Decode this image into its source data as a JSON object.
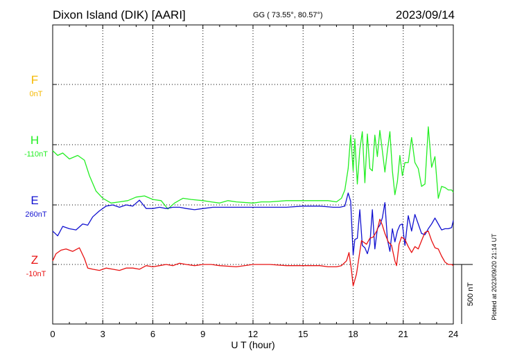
{
  "header": {
    "station": "Dixon Island (DIK)  [AARI]",
    "coords": "GG ( 73.55°,  80.57°)",
    "date": "2023/09/14"
  },
  "side_note": "Plotted at 2023/09/20 21:14 UT",
  "scale_label": "500 nT",
  "colors": {
    "F": "#f5b800",
    "H": "#22ee22",
    "E": "#1010d0",
    "Z": "#e81010",
    "axis": "#000000"
  },
  "chart_data": {
    "type": "line",
    "xlabel": "U T (hour)",
    "xlim": [
      0,
      24
    ],
    "x_ticks": [
      "0",
      "3",
      "6",
      "9",
      "12",
      "15",
      "18",
      "21",
      "24"
    ],
    "grid": true,
    "y_units": "nT",
    "panel_scale_nT": 500,
    "channels": [
      {
        "name": "F",
        "baseline": "0nT",
        "color": "#f5b800",
        "x": [],
        "values": []
      },
      {
        "name": "H",
        "baseline": "-110nT",
        "color": "#22ee22",
        "x": [
          0,
          0.3,
          0.6,
          1.0,
          1.5,
          1.9,
          2.2,
          2.6,
          3.0,
          3.5,
          4.0,
          4.5,
          5.0,
          5.5,
          6.0,
          6.5,
          6.9,
          7.3,
          7.8,
          8.3,
          9.0,
          9.5,
          10.0,
          10.5,
          11.0,
          12.0,
          12.5,
          13.0,
          14.0,
          15.0,
          16.0,
          16.5,
          17.0,
          17.3,
          17.5,
          17.7,
          17.85,
          18.0,
          18.1,
          18.25,
          18.4,
          18.55,
          18.7,
          18.85,
          19.0,
          19.15,
          19.3,
          19.45,
          19.6,
          19.75,
          19.9,
          20.05,
          20.2,
          20.35,
          20.5,
          20.65,
          20.8,
          20.95,
          21.1,
          21.3,
          21.5,
          21.7,
          21.9,
          22.1,
          22.3,
          22.5,
          22.7,
          22.9,
          23.1,
          23.3,
          23.5,
          23.7,
          23.9,
          24.0
        ],
        "values": [
          -50,
          -90,
          -70,
          -120,
          -90,
          -130,
          -260,
          -390,
          -450,
          -490,
          -480,
          -470,
          -440,
          -430,
          -460,
          -470,
          -540,
          -490,
          -450,
          -460,
          -470,
          -480,
          -490,
          -470,
          -480,
          -490,
          -480,
          -480,
          -470,
          -470,
          -470,
          -470,
          -480,
          -450,
          -380,
          -200,
          80,
          -220,
          50,
          -330,
          -40,
          110,
          -320,
          90,
          -200,
          -220,
          80,
          -100,
          120,
          -50,
          -230,
          -50,
          110,
          -220,
          -420,
          -310,
          -90,
          -260,
          -150,
          -150,
          60,
          -150,
          -200,
          -350,
          -330,
          150,
          -190,
          -100,
          -450,
          -350,
          -360,
          -380,
          -380,
          -400
        ]
      },
      {
        "name": "E",
        "baseline": "260nT",
        "color": "#1010d0",
        "x": [
          0,
          0.3,
          0.6,
          1.0,
          1.4,
          1.8,
          2.1,
          2.4,
          2.8,
          3.2,
          3.6,
          4.0,
          4.4,
          4.8,
          5.2,
          5.6,
          6.0,
          6.4,
          6.8,
          7.2,
          7.6,
          8.0,
          8.5,
          9.0,
          9.6,
          10.2,
          11.0,
          12.0,
          13.0,
          14.0,
          15.0,
          16.0,
          16.8,
          17.2,
          17.5,
          17.7,
          17.85,
          18.0,
          18.1,
          18.25,
          18.4,
          18.55,
          18.7,
          18.85,
          19.0,
          19.15,
          19.3,
          19.45,
          19.6,
          19.75,
          19.9,
          20.05,
          20.2,
          20.35,
          20.5,
          20.65,
          20.8,
          20.95,
          21.1,
          21.3,
          21.5,
          21.7,
          21.9,
          22.1,
          22.3,
          22.5,
          22.7,
          22.9,
          23.1,
          23.3,
          23.5,
          23.7,
          23.9,
          24.0
        ],
        "values": [
          -220,
          -260,
          -180,
          -200,
          -210,
          -160,
          -170,
          -100,
          -50,
          -10,
          0,
          -20,
          0,
          -10,
          40,
          -30,
          -30,
          -20,
          -30,
          -20,
          -20,
          -30,
          -40,
          -30,
          -20,
          -20,
          -20,
          -20,
          -20,
          -20,
          -10,
          -10,
          -20,
          -20,
          -10,
          100,
          30,
          -420,
          -290,
          -280,
          -40,
          -340,
          -360,
          -410,
          -330,
          -40,
          -370,
          -200,
          -170,
          -110,
          20,
          -290,
          -390,
          -200,
          -310,
          -220,
          -170,
          -160,
          -340,
          -90,
          -220,
          -80,
          -160,
          -240,
          -250,
          -200,
          -160,
          -110,
          -160,
          -210,
          -200,
          -200,
          -190,
          -130
        ]
      },
      {
        "name": "Z",
        "baseline": "-10nT",
        "color": "#e81010",
        "x": [
          0,
          0.2,
          0.5,
          0.8,
          1.2,
          1.6,
          1.9,
          2.1,
          2.4,
          2.8,
          3.2,
          3.6,
          4.0,
          4.4,
          4.8,
          5.2,
          5.6,
          6.0,
          6.4,
          6.8,
          7.2,
          7.6,
          8.0,
          8.5,
          9.0,
          9.5,
          10.0,
          11.0,
          12.0,
          13.0,
          14.0,
          15.0,
          16.0,
          16.5,
          17.0,
          17.3,
          17.6,
          17.75,
          17.9,
          18.0,
          18.2,
          18.5,
          18.8,
          19.0,
          19.2,
          19.45,
          19.6,
          19.75,
          19.9,
          20.1,
          20.3,
          20.5,
          20.6,
          20.75,
          20.9,
          21.1,
          21.3,
          21.5,
          21.7,
          21.9,
          22.1,
          22.3,
          22.5,
          22.7,
          22.9,
          23.1,
          23.3,
          23.5,
          23.7,
          23.9,
          24.0
        ],
        "values": [
          30,
          90,
          120,
          130,
          110,
          140,
          50,
          -30,
          -40,
          -50,
          -30,
          -40,
          -50,
          -30,
          -30,
          -40,
          -10,
          -20,
          -10,
          0,
          -10,
          10,
          0,
          -10,
          0,
          0,
          -10,
          -20,
          0,
          0,
          -10,
          -10,
          -10,
          -20,
          -20,
          -10,
          30,
          100,
          -50,
          -180,
          -80,
          200,
          170,
          220,
          230,
          290,
          380,
          330,
          260,
          190,
          160,
          30,
          -10,
          170,
          230,
          210,
          150,
          100,
          150,
          130,
          200,
          270,
          280,
          200,
          140,
          130,
          70,
          20,
          0,
          0,
          -10
        ]
      }
    ]
  }
}
